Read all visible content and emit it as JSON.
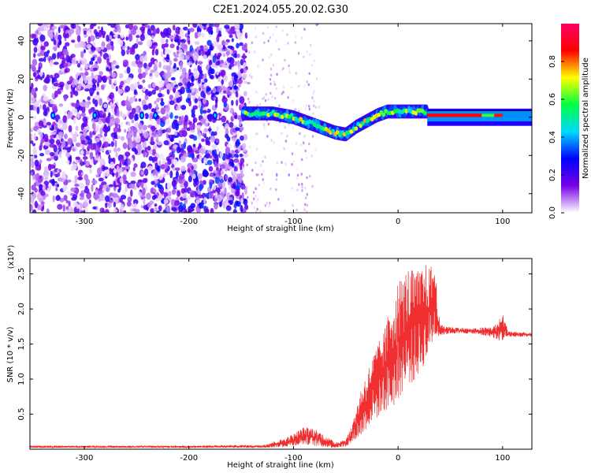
{
  "title": "C2E1.2024.055.20.02.G30",
  "chart_data": [
    {
      "type": "heatmap",
      "xlabel": "Height of straight line (km)",
      "ylabel": "Frequency (Hz)",
      "xlim": [
        -352,
        128
      ],
      "ylim": [
        -50,
        49
      ],
      "xticks": [
        -300,
        -200,
        -100,
        0,
        100
      ],
      "yticks": [
        -40,
        -20,
        0,
        20,
        40
      ],
      "colorbar": {
        "label": "Normalized spectral amplitude",
        "range": [
          0.0,
          1.0
        ],
        "ticks": [
          "0.0",
          "0.2",
          "0.4",
          "0.6",
          "0.8"
        ],
        "colormap": [
          "#ffffff",
          "#7a00e6",
          "#0000ff",
          "#00d8ff",
          "#00ff40",
          "#ffff00",
          "#ff0000",
          "#ff0066"
        ]
      },
      "ridge": {
        "x": [
          -150,
          -140,
          -130,
          -120,
          -110,
          -100,
          -90,
          -80,
          -70,
          -60,
          -50,
          -40,
          -30,
          -20,
          -10,
          0,
          10,
          20,
          28,
          30,
          60,
          90,
          128
        ],
        "y": [
          2,
          2,
          2,
          2,
          1,
          0,
          -2,
          -4,
          -6,
          -8,
          -9,
          -5,
          -2,
          1,
          3,
          3,
          3,
          3,
          3,
          1,
          1,
          1,
          0
        ]
      }
    },
    {
      "type": "line",
      "xlabel": "Height of straight line (km)",
      "ylabel": "SNR (10 * v/v)",
      "multiplier": "(x10⁴)",
      "xlim": [
        -352,
        128
      ],
      "ylim": [
        0,
        2.72
      ],
      "xticks": [
        -300,
        -200,
        -100,
        0,
        100
      ],
      "yticks": [
        0.5,
        1.0,
        1.5,
        2.0,
        2.5
      ],
      "series_color": "#f03030",
      "envelope": {
        "x": [
          -352,
          -200,
          -150,
          -130,
          -110,
          -100,
          -90,
          -80,
          -70,
          -60,
          -50,
          -45,
          -40,
          -35,
          -30,
          -25,
          -20,
          -15,
          -10,
          -5,
          0,
          5,
          10,
          15,
          20,
          25,
          30,
          35,
          40,
          50,
          70,
          90,
          95,
          100,
          105,
          110,
          128
        ],
        "low": [
          0.02,
          0.02,
          0.02,
          0.02,
          0.03,
          0.05,
          0.07,
          0.05,
          0.03,
          0.02,
          0.04,
          0.08,
          0.15,
          0.2,
          0.3,
          0.4,
          0.45,
          0.55,
          0.55,
          0.6,
          0.7,
          0.85,
          0.95,
          0.95,
          1.1,
          1.2,
          1.4,
          1.6,
          1.62,
          1.65,
          1.65,
          1.6,
          1.55,
          1.55,
          1.6,
          1.6,
          1.6
        ],
        "high": [
          0.05,
          0.05,
          0.06,
          0.06,
          0.15,
          0.22,
          0.32,
          0.3,
          0.2,
          0.1,
          0.15,
          0.3,
          0.6,
          0.9,
          1.1,
          1.3,
          1.5,
          1.6,
          1.9,
          2.2,
          2.4,
          2.5,
          2.6,
          2.55,
          2.55,
          2.65,
          2.6,
          2.7,
          1.78,
          1.75,
          1.72,
          1.75,
          1.8,
          1.95,
          1.7,
          1.68,
          1.66
        ]
      }
    }
  ]
}
